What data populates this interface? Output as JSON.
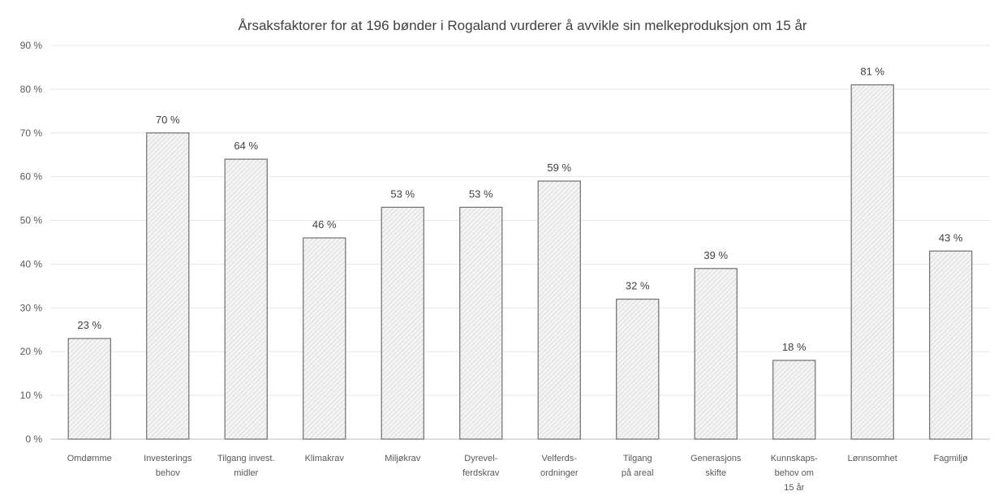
{
  "chart_data": {
    "type": "bar",
    "title": "Årsaksfaktorer for at 196 bønder i Rogaland vurderer å avvikle sin melkeproduksjon om 15 år",
    "xlabel": "",
    "ylabel": "",
    "ylim": [
      0,
      90
    ],
    "y_unit": "%",
    "yticks": [
      "0 %",
      "10 %",
      "20 %",
      "30 %",
      "40 %",
      "50 %",
      "60 %",
      "70 %",
      "80 %",
      "90 %"
    ],
    "grid": true,
    "legend": "none",
    "categories": [
      [
        "Omdømme"
      ],
      [
        "Investerings",
        "behov"
      ],
      [
        "Tilgang invest.",
        "midler"
      ],
      [
        "Klimakrav"
      ],
      [
        "Miljøkrav"
      ],
      [
        "Dyrevel-",
        "ferdskrav"
      ],
      [
        "Velferds-",
        "ordninger"
      ],
      [
        "Tilgang",
        "på areal"
      ],
      [
        "Generasjons",
        "skifte"
      ],
      [
        "Kunnskaps-",
        "behov om",
        "15 år"
      ],
      [
        "Lønnsomhet"
      ],
      [
        "Fagmiljø"
      ]
    ],
    "values": [
      23,
      70,
      64,
      46,
      53,
      53,
      59,
      32,
      39,
      18,
      81,
      43
    ],
    "data_labels": [
      "23 %",
      "70 %",
      "64 %",
      "46 %",
      "53 %",
      "53 %",
      "59 %",
      "32 %",
      "39 %",
      "18 %",
      "81 %",
      "43 %"
    ],
    "bar_fill": "#f2f2f2",
    "bar_stroke": "#6f6f6f",
    "grid_color": "#e6e6e6",
    "text_color": "#595959"
  }
}
